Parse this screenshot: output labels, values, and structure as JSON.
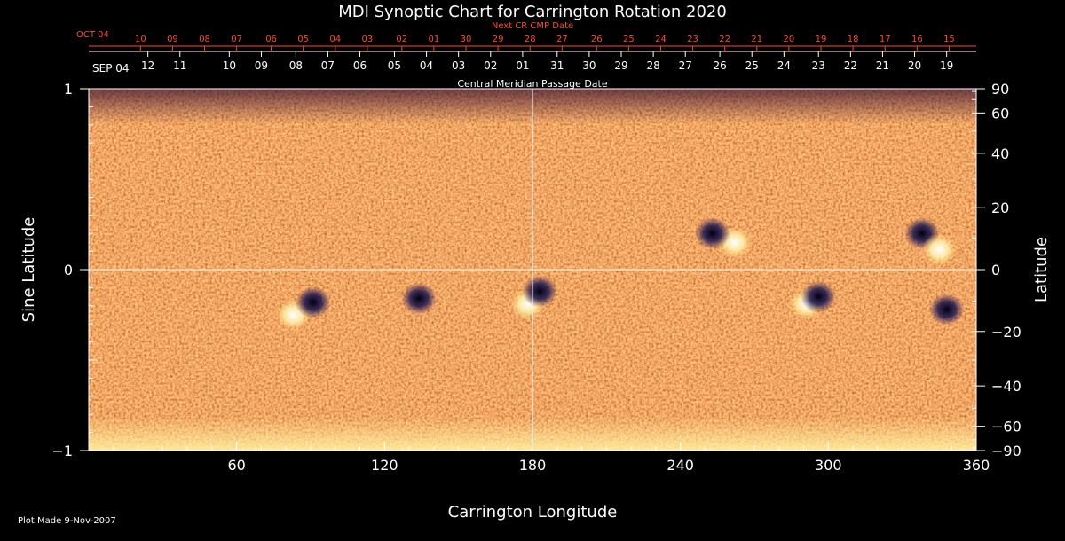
{
  "chart_data": {
    "type": "heatmap",
    "title": "MDI Synoptic Chart for Carrington Rotation 2020",
    "xlabel": "Carrington Longitude",
    "ylabel_left": "Sine Latitude",
    "ylabel_right": "Latitude",
    "xlim": [
      0,
      360
    ],
    "ylim": [
      -1,
      1
    ],
    "x_ticks": [
      60,
      120,
      180,
      240,
      300,
      360
    ],
    "y_ticks_left": [
      {
        "value": 1,
        "label": "1"
      },
      {
        "value": 0,
        "label": "0"
      },
      {
        "value": -1,
        "label": "−1"
      }
    ],
    "y_ticks_right": [
      {
        "deg": 90,
        "label": "90"
      },
      {
        "deg": 60,
        "label": "60"
      },
      {
        "deg": 40,
        "label": "40"
      },
      {
        "deg": 20,
        "label": "20"
      },
      {
        "deg": 0,
        "label": "0"
      },
      {
        "deg": -20,
        "label": "−20"
      },
      {
        "deg": -40,
        "label": "−40"
      },
      {
        "deg": -60,
        "label": "−60"
      },
      {
        "deg": -90,
        "label": "−90"
      }
    ],
    "top_axis_cmp": {
      "label": "Central Meridian Passage Date",
      "month_label": "SEP 04",
      "ticks": [
        {
          "lon": 24,
          "label": "12"
        },
        {
          "lon": 37,
          "label": "11"
        },
        {
          "lon": 57,
          "label": "10"
        },
        {
          "lon": 70,
          "label": "09"
        },
        {
          "lon": 84,
          "label": "08"
        },
        {
          "lon": 97,
          "label": "07"
        },
        {
          "lon": 110,
          "label": "06"
        },
        {
          "lon": 124,
          "label": "05"
        },
        {
          "lon": 137,
          "label": "04"
        },
        {
          "lon": 150,
          "label": "03"
        },
        {
          "lon": 163,
          "label": "02"
        },
        {
          "lon": 176,
          "label": "01"
        },
        {
          "lon": 190,
          "label": "31"
        },
        {
          "lon": 203,
          "label": "30"
        },
        {
          "lon": 216,
          "label": "29"
        },
        {
          "lon": 229,
          "label": "28"
        },
        {
          "lon": 242,
          "label": "27"
        },
        {
          "lon": 256,
          "label": "26"
        },
        {
          "lon": 269,
          "label": "25"
        },
        {
          "lon": 282,
          "label": "24"
        },
        {
          "lon": 296,
          "label": "23"
        },
        {
          "lon": 309,
          "label": "22"
        },
        {
          "lon": 322,
          "label": "21"
        },
        {
          "lon": 335,
          "label": "20"
        },
        {
          "lon": 348,
          "label": "19"
        }
      ]
    },
    "top_axis_next": {
      "label": "Next CR CMP Date",
      "month_label": "OCT 04",
      "ticks": [
        {
          "lon": 21,
          "label": "10"
        },
        {
          "lon": 34,
          "label": "09"
        },
        {
          "lon": 47,
          "label": "08"
        },
        {
          "lon": 60,
          "label": "07"
        },
        {
          "lon": 74,
          "label": "06"
        },
        {
          "lon": 87,
          "label": "05"
        },
        {
          "lon": 100,
          "label": "04"
        },
        {
          "lon": 113,
          "label": "03"
        },
        {
          "lon": 127,
          "label": "02"
        },
        {
          "lon": 140,
          "label": "01"
        },
        {
          "lon": 153,
          "label": "30"
        },
        {
          "lon": 166,
          "label": "29"
        },
        {
          "lon": 179,
          "label": "28"
        },
        {
          "lon": 192,
          "label": "27"
        },
        {
          "lon": 206,
          "label": "26"
        },
        {
          "lon": 219,
          "label": "25"
        },
        {
          "lon": 232,
          "label": "24"
        },
        {
          "lon": 245,
          "label": "23"
        },
        {
          "lon": 258,
          "label": "22"
        },
        {
          "lon": 271,
          "label": "21"
        },
        {
          "lon": 284,
          "label": "20"
        },
        {
          "lon": 297,
          "label": "19"
        },
        {
          "lon": 310,
          "label": "18"
        },
        {
          "lon": 323,
          "label": "17"
        },
        {
          "lon": 336,
          "label": "16"
        },
        {
          "lon": 349,
          "label": "15"
        }
      ]
    },
    "active_regions": [
      {
        "lon": 83,
        "sinlat": -0.25,
        "polarity": "positive"
      },
      {
        "lon": 91,
        "sinlat": -0.18,
        "polarity": "negative"
      },
      {
        "lon": 134,
        "sinlat": -0.16,
        "polarity": "negative"
      },
      {
        "lon": 178,
        "sinlat": -0.19,
        "polarity": "positive"
      },
      {
        "lon": 183,
        "sinlat": -0.12,
        "polarity": "negative"
      },
      {
        "lon": 262,
        "sinlat": 0.15,
        "polarity": "positive"
      },
      {
        "lon": 253,
        "sinlat": 0.2,
        "polarity": "negative"
      },
      {
        "lon": 291,
        "sinlat": -0.19,
        "polarity": "positive"
      },
      {
        "lon": 296,
        "sinlat": -0.15,
        "polarity": "negative"
      },
      {
        "lon": 338,
        "sinlat": 0.2,
        "polarity": "negative"
      },
      {
        "lon": 345,
        "sinlat": 0.11,
        "polarity": "positive"
      },
      {
        "lon": 348,
        "sinlat": -0.22,
        "polarity": "negative"
      }
    ],
    "colors": {
      "background": "#e8491b",
      "positive": "#fff6c8",
      "negative": "#1a1650"
    }
  },
  "footer": {
    "plot_made": "Plot Made  9-Nov-2007"
  }
}
